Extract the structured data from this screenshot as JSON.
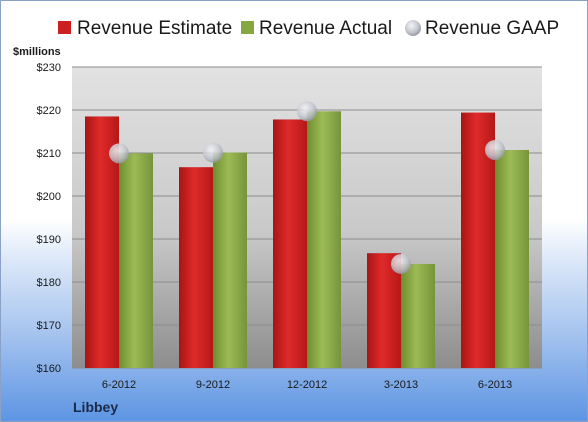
{
  "company": "Libbey",
  "chart_data": {
    "type": "bar",
    "ylabel": "$millions",
    "categories": [
      "6-2012",
      "9-2012",
      "12-2012",
      "3-2013",
      "6-2013"
    ],
    "y_ticks": [
      "$160",
      "$170",
      "$180",
      "$190",
      "$200",
      "$210",
      "$220",
      "$230"
    ],
    "ylim": [
      160,
      230
    ],
    "grid": true,
    "legend_position": "top",
    "series": [
      {
        "name": "Revenue Estimate",
        "kind": "bar",
        "color": "#cc1f1f",
        "values": [
          218.5,
          206.7,
          217.8,
          186.7,
          219.4
        ]
      },
      {
        "name": "Revenue Actual",
        "kind": "bar",
        "color": "#86a63f",
        "values": [
          209.9,
          210.1,
          219.7,
          184.2,
          210.7
        ]
      },
      {
        "name": "Revenue GAAP",
        "kind": "marker",
        "color": "#c8cbd2",
        "values": [
          209.9,
          210.1,
          219.7,
          184.2,
          210.7
        ]
      }
    ]
  }
}
